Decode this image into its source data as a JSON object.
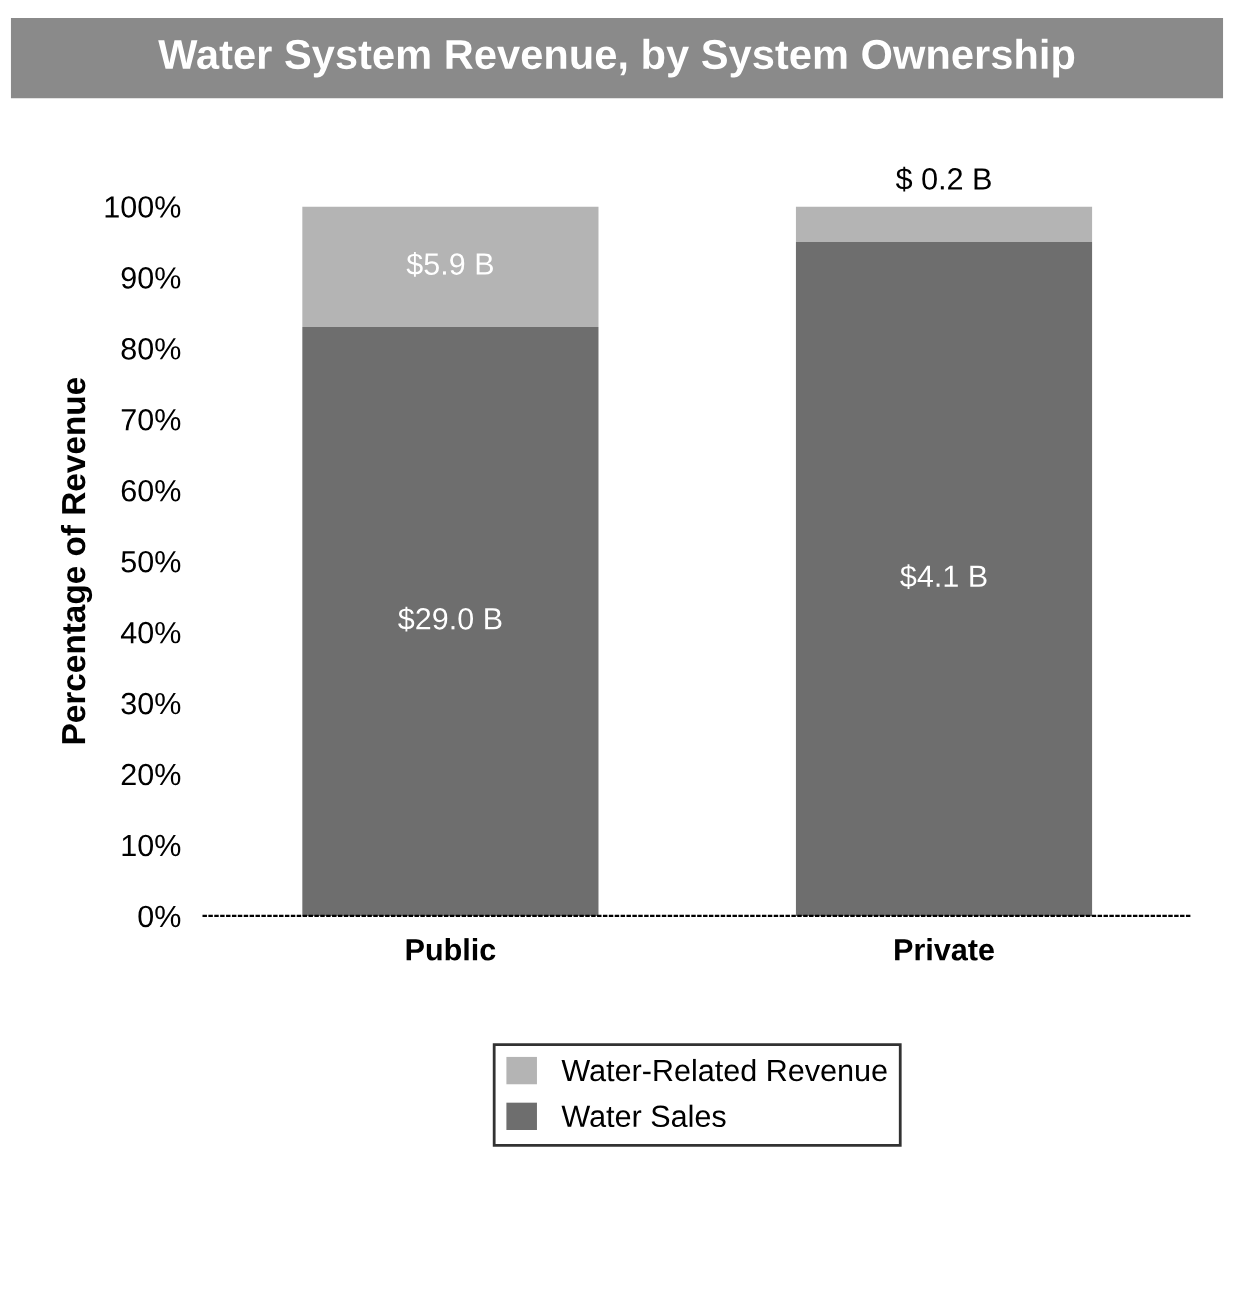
{
  "chart_data": {
    "type": "bar",
    "title": "Water System Revenue, by System Ownership",
    "ylabel": "Percentage of Revenue",
    "categories": [
      "Public",
      "Private"
    ],
    "stacked": true,
    "series": [
      {
        "name": "Water Sales",
        "color": "#6e6e6e",
        "values": [
          83,
          95
        ]
      },
      {
        "name": "Water-Related Revenue",
        "color": "#b4b4b4",
        "values": [
          17,
          5
        ]
      }
    ],
    "annotations": [
      "$29.0 B",
      "$4.1 B",
      "$5.9 B",
      "$ 0.2 B"
    ],
    "ylim": [
      0,
      100
    ],
    "yticks": [
      {
        "value": 0,
        "label": "0%"
      },
      {
        "value": 10,
        "label": "10%"
      },
      {
        "value": 20,
        "label": "20%"
      },
      {
        "value": 30,
        "label": "30%"
      },
      {
        "value": 40,
        "label": "40%"
      },
      {
        "value": 50,
        "label": "50%"
      },
      {
        "value": 60,
        "label": "60%"
      },
      {
        "value": 70,
        "label": "70%"
      },
      {
        "value": 80,
        "label": "80%"
      },
      {
        "value": 90,
        "label": "90%"
      },
      {
        "value": 100,
        "label": "100%"
      }
    ],
    "grid": false,
    "legend": "bottom"
  }
}
